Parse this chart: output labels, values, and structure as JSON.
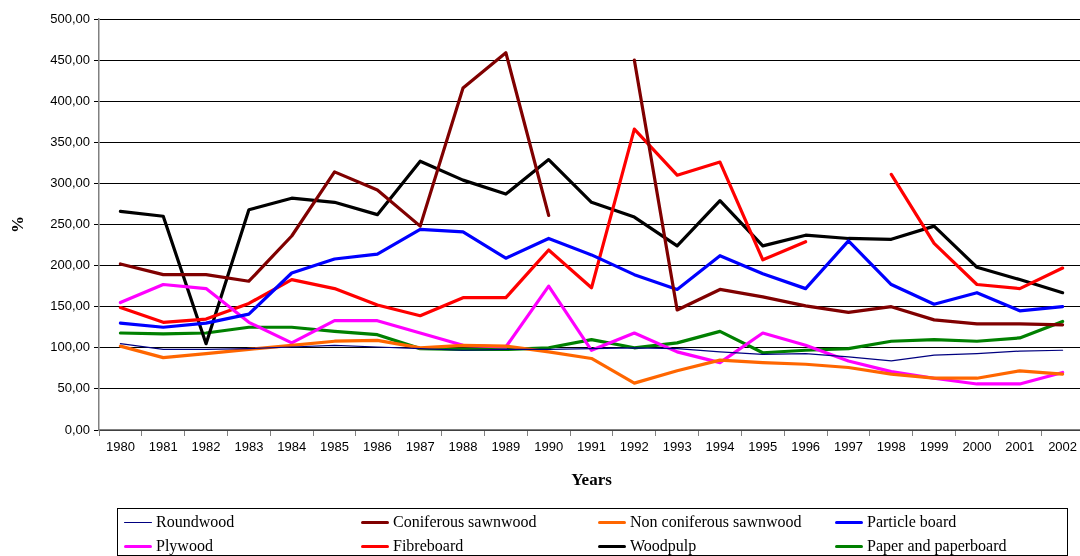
{
  "chart_data": {
    "type": "line",
    "xlabel": "Years",
    "ylabel": "%",
    "categories": [
      "1980",
      "1981",
      "1982",
      "1983",
      "1984",
      "1985",
      "1986",
      "1987",
      "1988",
      "1989",
      "1990",
      "1991",
      "1992",
      "1993",
      "1994",
      "1995",
      "1996",
      "1997",
      "1998",
      "1999",
      "2000",
      "2001",
      "2002"
    ],
    "series": [
      {
        "name": "Roundwood",
        "color": "#000080",
        "values": [
          105,
          98,
          98,
          99,
          101,
          103,
          101,
          99,
          97,
          98,
          98,
          99,
          100,
          99,
          95,
          92,
          93,
          89,
          84,
          91,
          93,
          96,
          97
        ]
      },
      {
        "name": "Coniferous sawnwood",
        "color": "#800000",
        "values": [
          202,
          189,
          189,
          181,
          236,
          314,
          292,
          248,
          416,
          459,
          261,
          null,
          450,
          146,
          171,
          162,
          151,
          143,
          150,
          134,
          129,
          129,
          128
        ]
      },
      {
        "name": "Non coniferous sawnwood",
        "color": "#ff6600",
        "values": [
          102,
          88,
          93,
          98,
          103,
          108,
          109,
          100,
          103,
          102,
          95,
          87,
          57,
          72,
          85,
          82,
          80,
          76,
          68,
          63,
          63,
          72,
          68
        ]
      },
      {
        "name": "Particle board",
        "color": "#0000ff",
        "values": [
          130,
          125,
          130,
          141,
          191,
          208,
          214,
          244,
          241,
          209,
          233,
          213,
          189,
          171,
          212,
          190,
          172,
          230,
          177,
          153,
          167,
          145,
          150
        ]
      },
      {
        "name": "Plywood",
        "color": "#ff00ff",
        "values": [
          155,
          177,
          172,
          131,
          106,
          133,
          133,
          118,
          103,
          101,
          175,
          97,
          118,
          95,
          82,
          118,
          103,
          84,
          71,
          63,
          56,
          56,
          70
        ]
      },
      {
        "name": "Fibreboard",
        "color": "#ff0000",
        "values": [
          149,
          131,
          135,
          154,
          183,
          172,
          152,
          139,
          161,
          161,
          219,
          173,
          366,
          310,
          326,
          207,
          229,
          null,
          311,
          227,
          177,
          172,
          197
        ]
      },
      {
        "name": "Woodpulp",
        "color": "#000000",
        "values": [
          266,
          260,
          105,
          268,
          282,
          277,
          262,
          327,
          304,
          287,
          329,
          277,
          259,
          224,
          279,
          224,
          237,
          233,
          232,
          248,
          198,
          183,
          167
        ]
      },
      {
        "name": "Paper and paperboard",
        "color": "#008000",
        "values": [
          118,
          117,
          118,
          125,
          125,
          120,
          116,
          99,
          98,
          98,
          100,
          110,
          100,
          106,
          120,
          94,
          97,
          99,
          108,
          110,
          108,
          112,
          132
        ]
      }
    ],
    "ylim": [
      0,
      500
    ],
    "yticks": [
      {
        "value": 0,
        "label": "0,00"
      },
      {
        "value": 50,
        "label": "50,00"
      },
      {
        "value": 100,
        "label": "100,00"
      },
      {
        "value": 150,
        "label": "150,00"
      },
      {
        "value": 200,
        "label": "200,00"
      },
      {
        "value": 250,
        "label": "250,00"
      },
      {
        "value": 300,
        "label": "300,00"
      },
      {
        "value": 350,
        "label": "350,00"
      },
      {
        "value": 400,
        "label": "400,00"
      },
      {
        "value": 450,
        "label": "450,00"
      },
      {
        "value": 500,
        "label": "500,00"
      }
    ],
    "grid": "y",
    "legend": "bottom",
    "marker": "none"
  }
}
